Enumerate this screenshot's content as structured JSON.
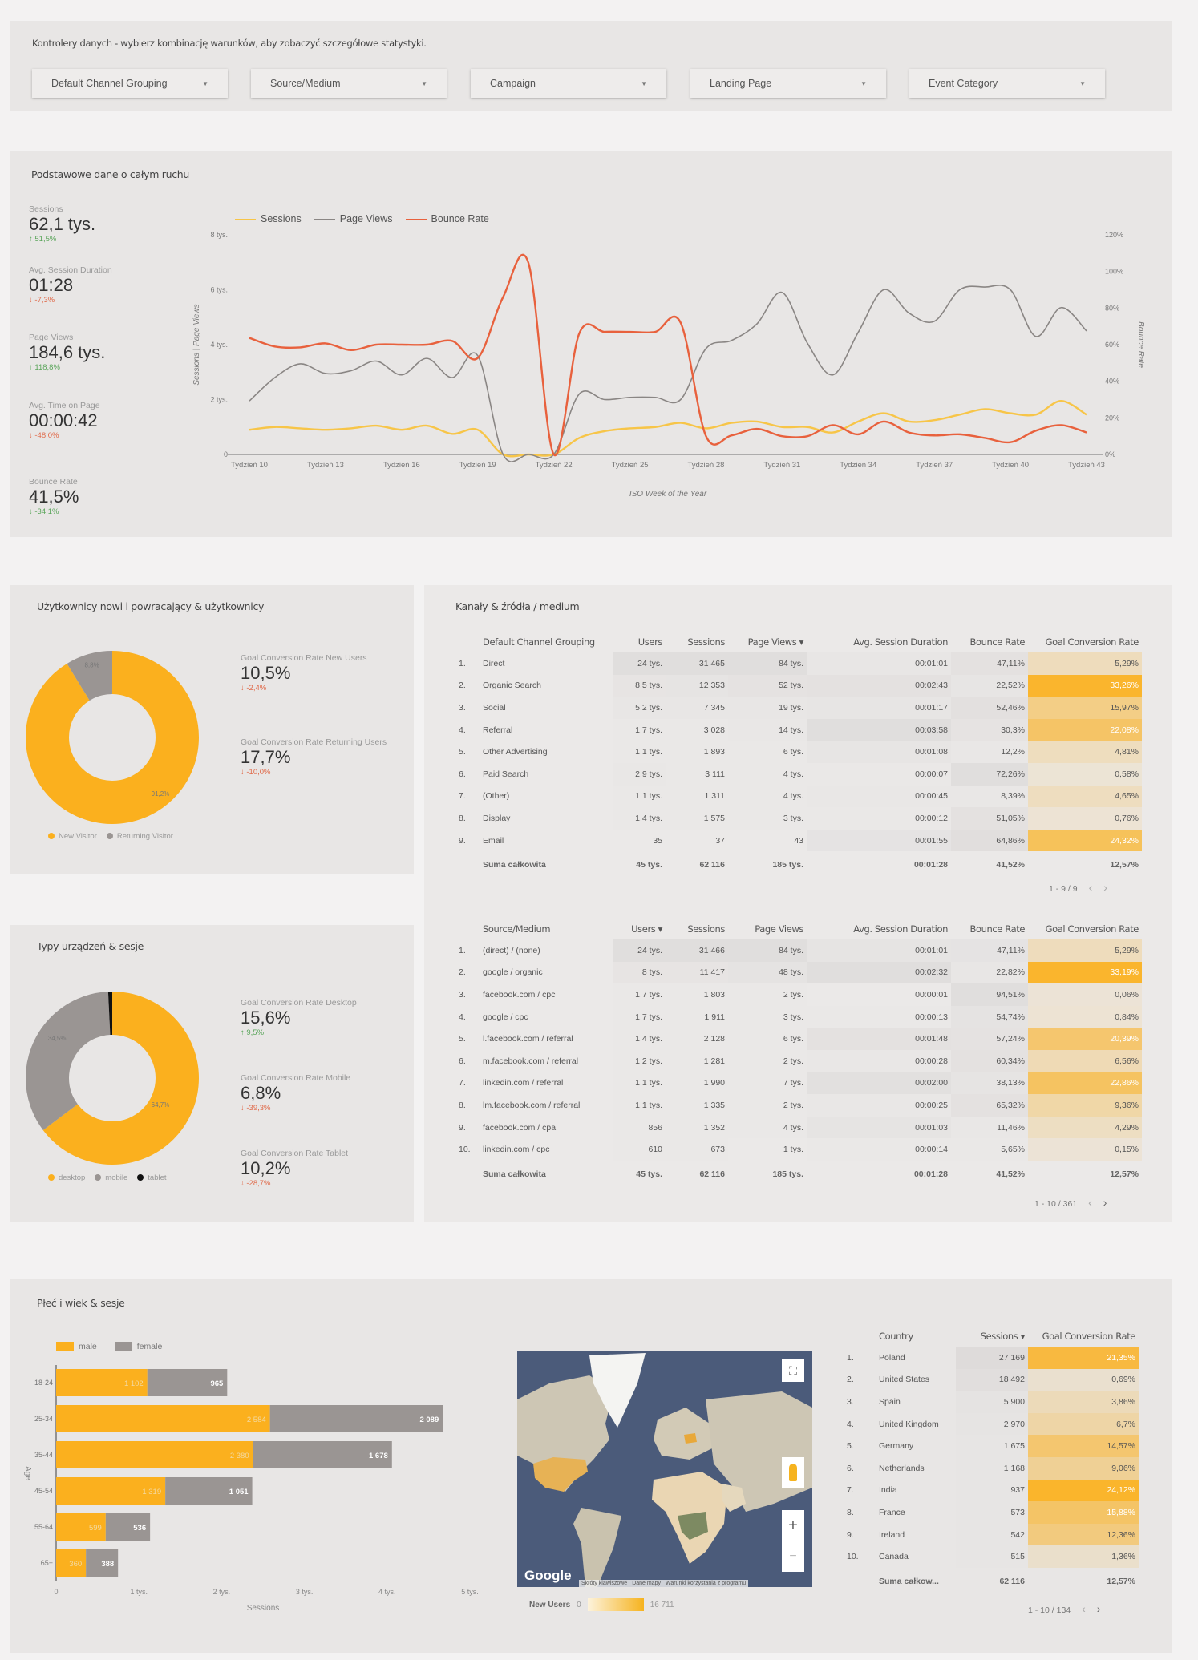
{
  "controls": {
    "title": "Kontrolery danych - wybierz kombinację warunków, aby zobaczyć szczegółowe statystyki.",
    "dropdowns": [
      "Default Channel Grouping",
      "Source/Medium",
      "Campaign",
      "Landing Page",
      "Event Category"
    ]
  },
  "traffic": {
    "title": "Podstawowe dane o całym ruchu",
    "kpis": [
      {
        "label": "Sessions",
        "value": "62,1 tys.",
        "delta": "↑ 51,5%",
        "dir": "up"
      },
      {
        "label": "Avg. Session Duration",
        "value": "01:28",
        "delta": "↓ -7,3%",
        "dir": "down"
      },
      {
        "label": "Page Views",
        "value": "184,6 tys.",
        "delta": "↑ 118,8%",
        "dir": "up"
      },
      {
        "label": "Avg. Time on Page",
        "value": "00:00:42",
        "delta": "↓ -48,0%",
        "dir": "down"
      },
      {
        "label": "Bounce Rate",
        "value": "41,5%",
        "delta": "↓ -34,1%",
        "dir": "up"
      }
    ]
  },
  "chart_data": [
    {
      "type": "line",
      "title": "",
      "xlabel": "ISO Week of the Year",
      "ylabel": "Sessions | Page Views",
      "y2label": "Bounce Rate",
      "x": [
        10,
        11,
        12,
        13,
        14,
        15,
        16,
        17,
        18,
        19,
        20,
        21,
        22,
        23,
        24,
        25,
        26,
        27,
        28,
        29,
        30,
        31,
        32,
        33,
        34,
        35,
        36,
        37,
        38,
        39,
        40,
        41,
        42,
        43
      ],
      "x_tick_labels": [
        "Tydzień 10",
        "Tydzień 13",
        "Tydzień 16",
        "Tydzień 19",
        "Tydzień 22",
        "Tydzień 25",
        "Tydzień 28",
        "Tydzień 31",
        "Tydzień 34",
        "Tydzień 37",
        "Tydzień 40",
        "Tydzień 43"
      ],
      "y_tick_labels": [
        "0",
        "2 tys.",
        "4 tys.",
        "6 tys.",
        "8 tys."
      ],
      "y2_tick_labels": [
        "0%",
        "20%",
        "40%",
        "60%",
        "80%",
        "100%",
        "120%"
      ],
      "ylim": [
        0,
        8000
      ],
      "y2lim": [
        0,
        120
      ],
      "legend_position": "top-left",
      "series": [
        {
          "name": "Sessions",
          "axis": "left",
          "color": "#f7c548",
          "values": [
            900,
            1000,
            950,
            900,
            950,
            1050,
            900,
            1050,
            750,
            900,
            0,
            0,
            0,
            600,
            850,
            950,
            1000,
            1150,
            950,
            1150,
            1200,
            1000,
            1000,
            800,
            1200,
            1500,
            1200,
            1250,
            1450,
            1650,
            1500,
            1450,
            1950,
            1450
          ]
        },
        {
          "name": "Page Views",
          "axis": "left",
          "color": "#8a8684",
          "values": [
            1950,
            2800,
            3300,
            2950,
            3050,
            3400,
            2900,
            3500,
            2800,
            3600,
            0,
            0,
            0,
            2200,
            2000,
            2080,
            2080,
            2000,
            3860,
            4150,
            4750,
            5900,
            4050,
            2900,
            4450,
            6000,
            5150,
            4850,
            6000,
            6100,
            6000,
            4300,
            5350,
            4500
          ]
        },
        {
          "name": "Bounce Rate",
          "axis": "right",
          "color": "#e8613d",
          "values": [
            63.7,
            59,
            58.5,
            60.7,
            57,
            60,
            60,
            60,
            62,
            52.7,
            86,
            104.7,
            0,
            66,
            67,
            67,
            67,
            72,
            10,
            10.4,
            14,
            10,
            10,
            16,
            11,
            18,
            12,
            10.4,
            11,
            9,
            6.7,
            13,
            16,
            12
          ]
        }
      ]
    },
    {
      "type": "pie",
      "title": "Użytkownicy nowi i powracający & użytkownicy",
      "labels": [
        "New Visitor",
        "Returning Visitor"
      ],
      "values": [
        91.2,
        8.8
      ],
      "value_labels": [
        "91,2%",
        "8,8%"
      ],
      "colors": [
        "#fbb01e",
        "#9a9593"
      ],
      "legend_position": "bottom"
    },
    {
      "type": "pie",
      "title": "Typy urządzeń & sesje",
      "labels": [
        "desktop",
        "mobile",
        "tablet"
      ],
      "values": [
        64.7,
        34.5,
        0.8
      ],
      "value_labels": [
        "64,7%",
        "34,5%",
        ""
      ],
      "colors": [
        "#fbb01e",
        "#9a9593",
        "#111111"
      ],
      "legend_position": "bottom"
    },
    {
      "type": "bar",
      "orientation": "horizontal",
      "stacked": true,
      "title": "Płeć i wiek & sesje",
      "xlabel": "Sessions",
      "ylabel": "Age",
      "categories": [
        "18-24",
        "25-34",
        "35-44",
        "45-54",
        "55-64",
        "65+"
      ],
      "x_tick_labels": [
        "0",
        "1 tys.",
        "2 tys.",
        "3 tys.",
        "4 tys.",
        "5 tys."
      ],
      "xlim": [
        0,
        5000
      ],
      "legend_position": "top-left",
      "series": [
        {
          "name": "male",
          "color": "#fbb01e",
          "values": [
            1102,
            2584,
            2380,
            1319,
            599,
            360
          ],
          "labels": [
            "1 102",
            "2 584",
            "2 380",
            "1 319",
            "599",
            "360"
          ]
        },
        {
          "name": "female",
          "color": "#9a9593",
          "values": [
            965,
            2089,
            1678,
            1051,
            536,
            388
          ],
          "labels": [
            "965",
            "2 089",
            "1 678",
            "1 051",
            "536",
            "388"
          ]
        }
      ]
    }
  ],
  "users": {
    "scorecards": [
      {
        "label": "Goal Conversion Rate New Users",
        "value": "10,5%",
        "delta": "↓ -2,4%",
        "dir": "down"
      },
      {
        "label": "Goal Conversion Rate Returning Users",
        "value": "17,7%",
        "delta": "↓ -10,0%",
        "dir": "down"
      }
    ]
  },
  "devices": {
    "scorecards": [
      {
        "label": "Goal Conversion Rate Desktop",
        "value": "15,6%",
        "delta": "↑ 9,5%",
        "dir": "up"
      },
      {
        "label": "Goal Conversion Rate Mobile",
        "value": "6,8%",
        "delta": "↓ -39,3%",
        "dir": "down"
      },
      {
        "label": "Goal Conversion Rate Tablet",
        "value": "10,2%",
        "delta": "↓ -28,7%",
        "dir": "down"
      }
    ]
  },
  "channels": {
    "title": "Kanały & źródła / medium",
    "table1": {
      "headers": [
        "",
        "Default Channel Grouping",
        "Users",
        "Sessions",
        "Page Views ▾",
        "Avg. Session Duration",
        "Bounce Rate",
        "Goal Conversion Rate"
      ],
      "rows": [
        [
          "1.",
          "Direct",
          "24 tys.",
          "31 465",
          "84 tys.",
          "00:01:01",
          "47,11%",
          "5,29%"
        ],
        [
          "2.",
          "Organic Search",
          "8,5 tys.",
          "12 353",
          "52 tys.",
          "00:02:43",
          "22,52%",
          "33,26%"
        ],
        [
          "3.",
          "Social",
          "5,2 tys.",
          "7 345",
          "19 tys.",
          "00:01:17",
          "52,46%",
          "15,97%"
        ],
        [
          "4.",
          "Referral",
          "1,7 tys.",
          "3 028",
          "14 tys.",
          "00:03:58",
          "30,3%",
          "22,08%"
        ],
        [
          "5.",
          "Other Advertising",
          "1,1 tys.",
          "1 893",
          "6 tys.",
          "00:01:08",
          "12,2%",
          "4,81%"
        ],
        [
          "6.",
          "Paid Search",
          "2,9 tys.",
          "3 111",
          "4 tys.",
          "00:00:07",
          "72,26%",
          "0,58%"
        ],
        [
          "7.",
          "(Other)",
          "1,1 tys.",
          "1 311",
          "4 tys.",
          "00:00:45",
          "8,39%",
          "4,65%"
        ],
        [
          "8.",
          "Display",
          "1,4 tys.",
          "1 575",
          "3 tys.",
          "00:00:12",
          "51,05%",
          "0,76%"
        ],
        [
          "9.",
          "Email",
          "35",
          "37",
          "43",
          "00:01:55",
          "64,86%",
          "24,32%"
        ]
      ],
      "total": [
        "",
        "Suma całkowita",
        "45 tys.",
        "62 116",
        "185 tys.",
        "00:01:28",
        "41,52%",
        "12,57%"
      ],
      "pagination": "1 - 9 / 9"
    },
    "table2": {
      "headers": [
        "",
        "Source/Medium",
        "Users ▾",
        "Sessions",
        "Page Views",
        "Avg. Session Duration",
        "Bounce Rate",
        "Goal Conversion Rate"
      ],
      "rows": [
        [
          "1.",
          "(direct) / (none)",
          "24 tys.",
          "31 466",
          "84 tys.",
          "00:01:01",
          "47,11%",
          "5,29%"
        ],
        [
          "2.",
          "google / organic",
          "8 tys.",
          "11 417",
          "48 tys.",
          "00:02:32",
          "22,82%",
          "33,19%"
        ],
        [
          "3.",
          "facebook.com / cpc",
          "1,7 tys.",
          "1 803",
          "2 tys.",
          "00:00:01",
          "94,51%",
          "0,06%"
        ],
        [
          "4.",
          "google / cpc",
          "1,7 tys.",
          "1 911",
          "3 tys.",
          "00:00:13",
          "54,74%",
          "0,84%"
        ],
        [
          "5.",
          "l.facebook.com / referral",
          "1,4 tys.",
          "2 128",
          "6 tys.",
          "00:01:48",
          "57,24%",
          "20,39%"
        ],
        [
          "6.",
          "m.facebook.com / referral",
          "1,2 tys.",
          "1 281",
          "2 tys.",
          "00:00:28",
          "60,34%",
          "6,56%"
        ],
        [
          "7.",
          "linkedin.com / referral",
          "1,1 tys.",
          "1 990",
          "7 tys.",
          "00:02:00",
          "38,13%",
          "22,86%"
        ],
        [
          "8.",
          "lm.facebook.com / referral",
          "1,1 tys.",
          "1 335",
          "2 tys.",
          "00:00:25",
          "65,32%",
          "9,36%"
        ],
        [
          "9.",
          "facebook.com / cpa",
          "856",
          "1 352",
          "4 tys.",
          "00:01:03",
          "11,46%",
          "4,29%"
        ],
        [
          "10.",
          "linkedin.com / cpc",
          "610",
          "673",
          "1 tys.",
          "00:00:14",
          "5,65%",
          "0,15%"
        ]
      ],
      "total": [
        "",
        "Suma całkowita",
        "45 tys.",
        "62 116",
        "185 tys.",
        "00:01:28",
        "41,52%",
        "12,57%"
      ],
      "pagination": "1 - 10 / 361"
    }
  },
  "demographics": {
    "title": "Płeć i wiek & sesje"
  },
  "map": {
    "logo": "Google",
    "attribution": [
      "Skróty klawiszowe",
      "Dane mapy",
      "Warunki korzystania z programu"
    ],
    "legend_label": "New Users",
    "legend_min": "0",
    "legend_max": "16 711"
  },
  "countries": {
    "headers": [
      "",
      "Country",
      "Sessions ▾",
      "Goal Conversion Rate"
    ],
    "rows": [
      [
        "1.",
        "Poland",
        "27 169",
        "21,35%"
      ],
      [
        "2.",
        "United States",
        "18 492",
        "0,69%"
      ],
      [
        "3.",
        "Spain",
        "5 900",
        "3,86%"
      ],
      [
        "4.",
        "United Kingdom",
        "2 970",
        "6,7%"
      ],
      [
        "5.",
        "Germany",
        "1 675",
        "14,57%"
      ],
      [
        "6.",
        "Netherlands",
        "1 168",
        "9,06%"
      ],
      [
        "7.",
        "India",
        "937",
        "24,12%"
      ],
      [
        "8.",
        "France",
        "573",
        "15,88%"
      ],
      [
        "9.",
        "Ireland",
        "542",
        "12,36%"
      ],
      [
        "10.",
        "Canada",
        "515",
        "1,36%"
      ]
    ],
    "total": [
      "",
      "Suma całkow...",
      "62 116",
      "12,57%"
    ],
    "pagination": "1 - 10 / 134"
  },
  "colors": {
    "accent": "#fbb01e",
    "gray": "#9a9593",
    "bounce": "#e8613d",
    "sessions_line": "#f7c548"
  }
}
